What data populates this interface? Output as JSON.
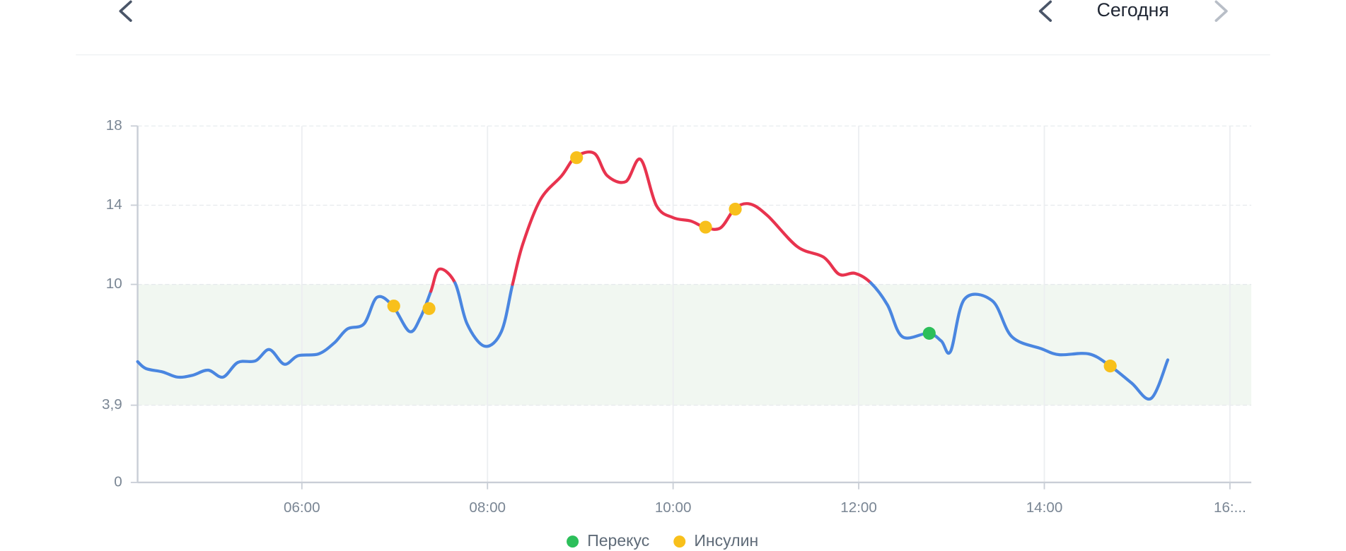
{
  "header": {
    "date_label": "Сегодня"
  },
  "chart_data": {
    "type": "line",
    "x": [
      4.23,
      4.32,
      4.5,
      4.66,
      4.82,
      4.99,
      5.15,
      5.31,
      5.5,
      5.65,
      5.81,
      5.96,
      6.18,
      6.35,
      6.49,
      6.67,
      6.81,
      6.98,
      7.16,
      7.28,
      7.39,
      7.48,
      7.65,
      7.78,
      7.97,
      8.15,
      8.27,
      8.38,
      8.57,
      8.8,
      8.95,
      9.15,
      9.29,
      9.49,
      9.65,
      9.82,
      10.0,
      10.19,
      10.34,
      10.51,
      10.67,
      10.83,
      11.02,
      11.34,
      11.62,
      11.79,
      11.96,
      12.13,
      12.31,
      12.47,
      12.75,
      12.89,
      12.99,
      13.14,
      13.44,
      13.65,
      13.97,
      14.16,
      14.48,
      14.71,
      14.94,
      15.15,
      15.33
    ],
    "values": [
      6.1,
      5.75,
      5.58,
      5.32,
      5.41,
      5.67,
      5.32,
      6.06,
      6.14,
      6.71,
      5.97,
      6.4,
      6.49,
      7.05,
      7.75,
      8.01,
      9.35,
      8.91,
      7.62,
      8.35,
      9.65,
      10.77,
      10.08,
      8.01,
      6.88,
      7.62,
      10.0,
      12.03,
      14.28,
      15.49,
      16.44,
      16.62,
      15.49,
      15.19,
      16.31,
      13.98,
      13.37,
      13.2,
      12.89,
      12.85,
      13.85,
      14.06,
      13.46,
      11.9,
      11.38,
      10.51,
      10.56,
      10.08,
      8.96,
      7.36,
      7.53,
      7.14,
      6.62,
      9.26,
      9.17,
      7.36,
      6.75,
      6.45,
      6.49,
      5.88,
      5.02,
      4.24,
      6.19
    ],
    "color": "#4a86e0",
    "high_color": "#e8334e",
    "high_threshold": 10,
    "target_range": [
      3.9,
      10
    ],
    "target_color": "#f1f7f1",
    "events": [
      {
        "name": "Перекус",
        "color": "#2cbf5a",
        "x": [
          12.76
        ],
        "values": [
          7.53
        ]
      },
      {
        "name": "Инсулин",
        "color": "#f8c01b",
        "x": [
          6.99,
          7.37,
          8.96,
          10.35,
          10.67,
          14.71
        ],
        "values": [
          8.91,
          8.78,
          16.4,
          12.89,
          13.8,
          5.88
        ]
      }
    ],
    "xlim": [
      4.23,
      16.23
    ],
    "xticks": [
      {
        "value": 6,
        "label": "06:00"
      },
      {
        "value": 8,
        "label": "08:00"
      },
      {
        "value": 10,
        "label": "10:00"
      },
      {
        "value": 12,
        "label": "12:00"
      },
      {
        "value": 14,
        "label": "14:00"
      },
      {
        "value": 16,
        "label": "16:..."
      }
    ],
    "ylim": [
      0,
      18
    ],
    "yticks": [
      0,
      {
        "value": 3.9,
        "label": "3,9"
      },
      10,
      14,
      18
    ],
    "grid": true
  }
}
